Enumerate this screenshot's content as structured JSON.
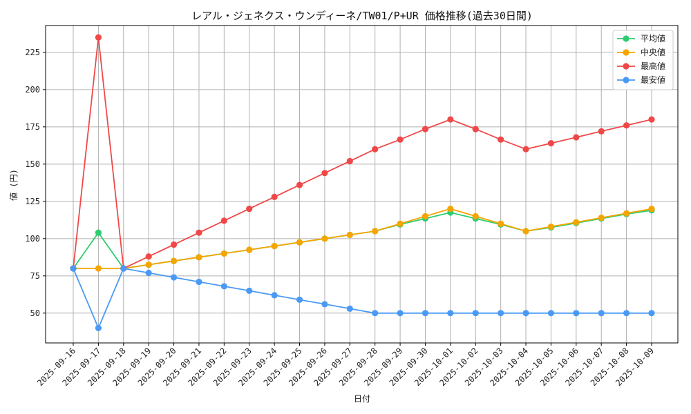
{
  "chart_data": {
    "type": "line",
    "title": "レアル・ジェネクス・ウンディーネ/TW01/P+UR 価格推移(過去30日間)",
    "xlabel": "日付",
    "ylabel": "値 (円)",
    "ylim": [
      30,
      243
    ],
    "yticks": [
      50,
      75,
      100,
      125,
      150,
      175,
      200,
      225
    ],
    "grid": true,
    "legend_position": "top-right",
    "categories": [
      "2025-09-16",
      "2025-09-17",
      "2025-09-18",
      "2025-09-19",
      "2025-09-20",
      "2025-09-21",
      "2025-09-22",
      "2025-09-23",
      "2025-09-24",
      "2025-09-25",
      "2025-09-26",
      "2025-09-27",
      "2025-09-28",
      "2025-09-29",
      "2025-09-30",
      "2025-10-01",
      "2025-10-02",
      "2025-10-03",
      "2025-10-04",
      "2025-10-05",
      "2025-10-06",
      "2025-10-07",
      "2025-10-08",
      "2025-10-09"
    ],
    "series": [
      {
        "name": "平均値",
        "color": "#2ecc71",
        "values": [
          80,
          104,
          80,
          82.5,
          85,
          87.5,
          90,
          92.5,
          95,
          97.5,
          100,
          102.5,
          105,
          109.5,
          113.5,
          117.5,
          113.5,
          109.5,
          105,
          107.5,
          110.5,
          113.5,
          116.5,
          119
        ]
      },
      {
        "name": "中央値",
        "color": "#f5a500",
        "values": [
          80,
          80,
          80,
          82.5,
          85,
          87.5,
          90,
          92.5,
          95,
          97.5,
          100,
          102.5,
          105,
          110,
          115,
          120,
          115,
          110,
          105,
          108,
          111,
          114,
          117,
          120
        ]
      },
      {
        "name": "最高値",
        "color": "#f04848",
        "values": [
          80,
          235,
          80,
          88,
          96,
          104,
          112,
          120,
          128,
          136,
          144,
          152,
          160,
          166.5,
          173.5,
          180,
          173.5,
          166.5,
          160,
          164,
          168,
          172,
          176,
          180
        ]
      },
      {
        "name": "最安値",
        "color": "#4a9af5",
        "values": [
          80,
          40,
          80,
          77,
          74,
          71,
          68,
          65,
          62,
          59,
          56,
          53,
          50,
          50,
          50,
          50,
          50,
          50,
          50,
          50,
          50,
          50,
          50,
          50
        ]
      }
    ]
  }
}
